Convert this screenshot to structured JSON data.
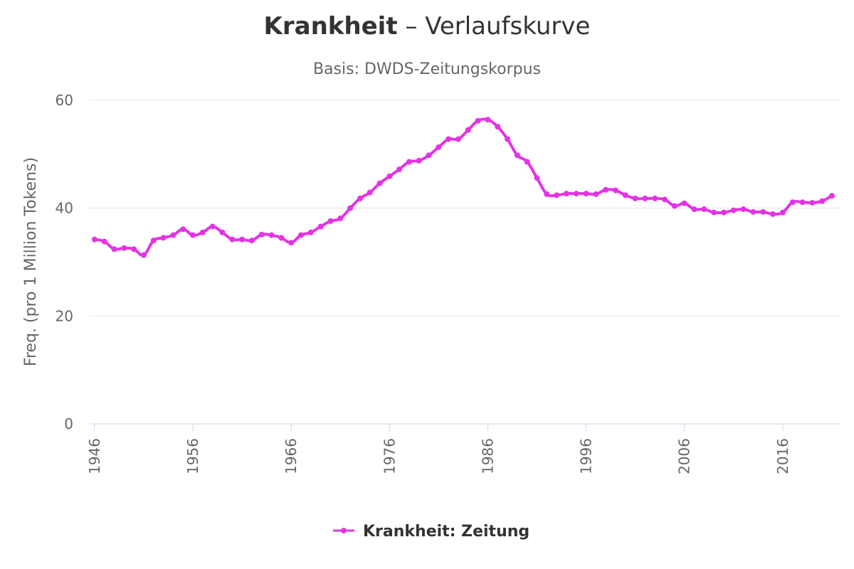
{
  "title": {
    "bold": "Krankheit",
    "rest": " – Verlaufskurve"
  },
  "subtitle": "Basis: DWDS-Zeitungskorpus",
  "legend": {
    "label": "Krankheit: Zeitung"
  },
  "colors": {
    "series": "#e433e4"
  },
  "chart_data": {
    "type": "line",
    "title": "Krankheit – Verlaufskurve",
    "subtitle": "Basis: DWDS-Zeitungskorpus",
    "xlabel": "",
    "ylabel": "Freq. (pro 1 Million Tokens)",
    "xlim": [
      1946,
      2021
    ],
    "ylim": [
      0,
      60
    ],
    "x_ticks": [
      "1946",
      "1956",
      "1966",
      "1976",
      "1986",
      "1996",
      "2006",
      "2016"
    ],
    "y_ticks": [
      "0",
      "20",
      "40",
      "60"
    ],
    "grid": true,
    "legend_position": "bottom-center",
    "series": [
      {
        "name": "Krankheit: Zeitung",
        "x": [
          1946,
          1947,
          1948,
          1949,
          1950,
          1951,
          1952,
          1953,
          1954,
          1955,
          1956,
          1957,
          1958,
          1959,
          1960,
          1961,
          1962,
          1963,
          1964,
          1965,
          1966,
          1967,
          1968,
          1969,
          1970,
          1971,
          1972,
          1973,
          1974,
          1975,
          1976,
          1977,
          1978,
          1979,
          1980,
          1981,
          1982,
          1983,
          1984,
          1985,
          1986,
          1987,
          1988,
          1989,
          1990,
          1991,
          1992,
          1993,
          1994,
          1995,
          1996,
          1997,
          1998,
          1999,
          2000,
          2001,
          2002,
          2003,
          2004,
          2005,
          2006,
          2007,
          2008,
          2009,
          2010,
          2011,
          2012,
          2013,
          2014,
          2015,
          2016,
          2017,
          2018,
          2019,
          2020,
          2021
        ],
        "values": [
          34.2,
          33.8,
          32.4,
          32.6,
          32.4,
          31.3,
          34.0,
          34.5,
          35.0,
          36.1,
          35.0,
          35.5,
          36.6,
          35.5,
          34.2,
          34.2,
          34.0,
          35.1,
          35.0,
          34.5,
          33.6,
          35.0,
          35.5,
          36.6,
          37.6,
          38.1,
          40.0,
          41.8,
          42.9,
          44.6,
          45.9,
          47.2,
          48.6,
          48.8,
          49.8,
          51.3,
          52.8,
          52.8,
          54.5,
          56.2,
          56.4,
          55.1,
          52.8,
          49.8,
          48.6,
          45.6,
          42.6,
          42.4,
          42.7,
          42.7,
          42.7,
          42.6,
          43.4,
          43.3,
          42.4,
          41.8,
          41.8,
          41.8,
          41.6,
          40.4,
          40.9,
          39.8,
          39.8,
          39.2,
          39.2,
          39.6,
          39.8,
          39.3,
          39.3,
          38.9,
          39.2,
          41.1,
          41.1,
          41.0,
          41.3,
          42.3
        ]
      }
    ]
  }
}
